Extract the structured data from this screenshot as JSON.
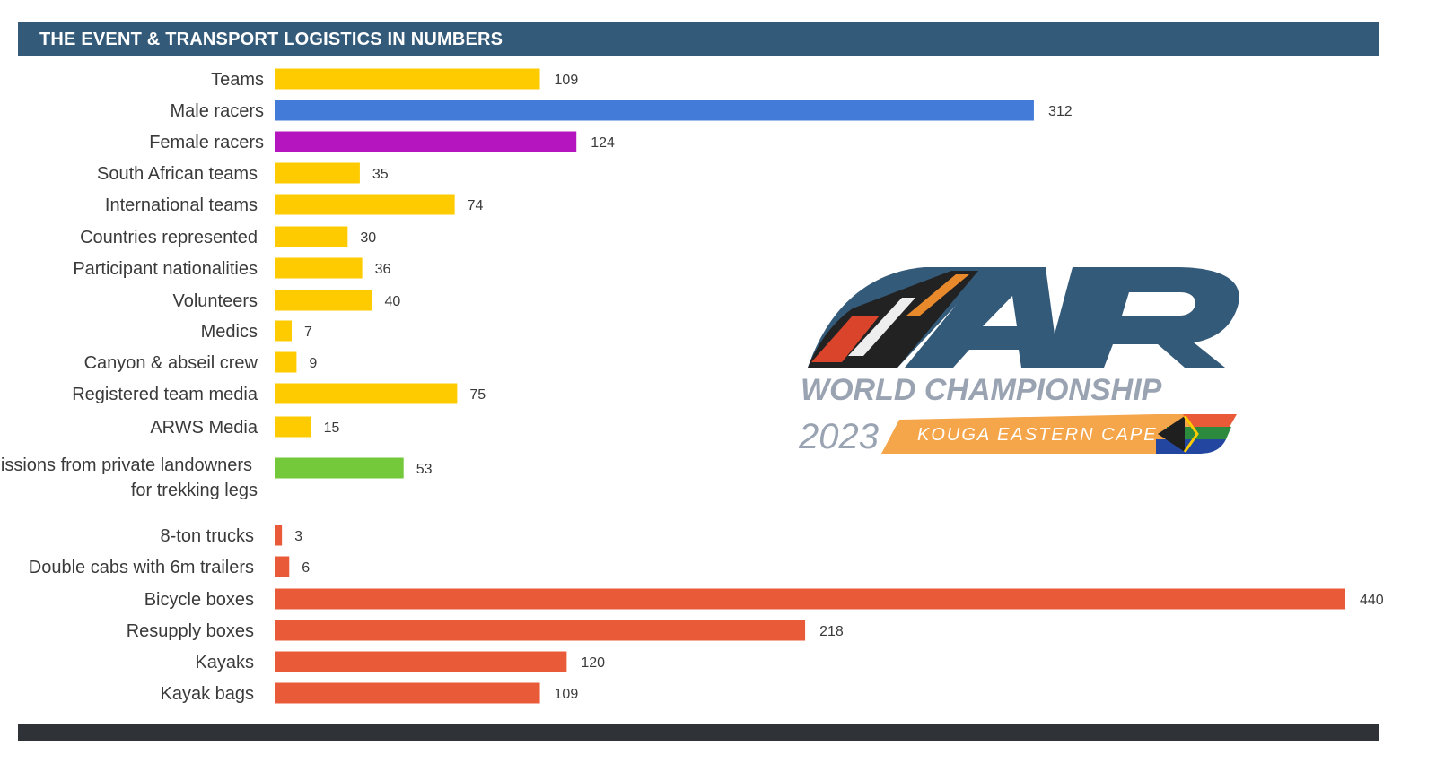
{
  "header": {
    "title": "THE EVENT & TRANSPORT LOGISTICS IN NUMBERS"
  },
  "logo": {
    "line1": "WORLD CHAMPIONSHIP",
    "year": "2023",
    "location": "KOUGA EASTERN CAPE"
  },
  "colors": {
    "header": "#345a7a",
    "footer": "#2f3236",
    "yellow": "#fecb00",
    "blue": "#437bd8",
    "purple": "#b515bf",
    "green": "#73c93a",
    "red": "#e95b38"
  },
  "chart_data": {
    "type": "bar",
    "orientation": "horizontal",
    "categories": [
      "Teams",
      "Male racers",
      "Female racers",
      "South African teams",
      "International teams",
      "Countries represented",
      "Participant nationalities",
      "Volunteers",
      "Medics",
      "Canyon & abseil crew",
      "Registered team media",
      "ARWS Media",
      "Permissions from private landowners for trekking legs",
      "8-ton trucks",
      "Double cabs with 6m trailers",
      "Bicycle boxes",
      "Resupply boxes",
      "Kayaks",
      "Kayak bags"
    ],
    "values": [
      109,
      312,
      124,
      35,
      74,
      30,
      36,
      40,
      7,
      9,
      75,
      15,
      53,
      3,
      6,
      440,
      218,
      120,
      109
    ],
    "bar_colors": [
      "#fecb00",
      "#437bd8",
      "#b515bf",
      "#fecb00",
      "#fecb00",
      "#fecb00",
      "#fecb00",
      "#fecb00",
      "#fecb00",
      "#fecb00",
      "#fecb00",
      "#fecb00",
      "#73c93a",
      "#e95b38",
      "#e95b38",
      "#e95b38",
      "#e95b38",
      "#e95b38",
      "#e95b38"
    ],
    "title": "THE EVENT & TRANSPORT LOGISTICS IN NUMBERS",
    "xlim": [
      0,
      440
    ],
    "grid": false,
    "legend": "none"
  }
}
